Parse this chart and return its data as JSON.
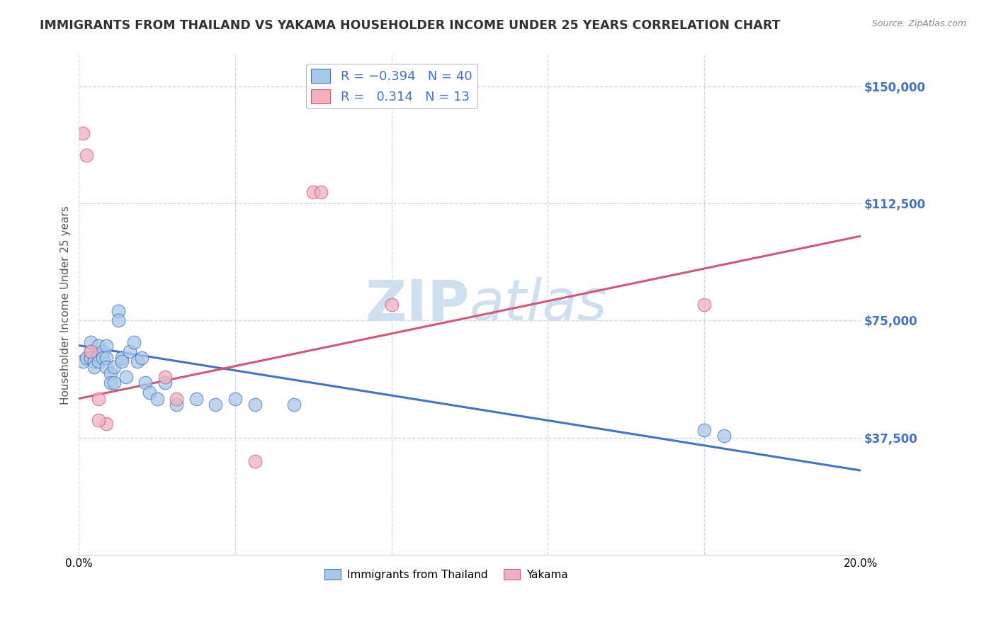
{
  "title": "IMMIGRANTS FROM THAILAND VS YAKAMA HOUSEHOLDER INCOME UNDER 25 YEARS CORRELATION CHART",
  "source": "Source: ZipAtlas.com",
  "ylabel": "Householder Income Under 25 years",
  "xlim": [
    0.0,
    0.2
  ],
  "ylim": [
    0,
    160000
  ],
  "yticks": [
    0,
    37500,
    75000,
    112500,
    150000
  ],
  "xticks": [
    0.0,
    0.04,
    0.08,
    0.12,
    0.16,
    0.2
  ],
  "xtick_labels": [
    "0.0%",
    "",
    "",
    "",
    "",
    "20.0%"
  ],
  "color_blue": "#a8c8e8",
  "color_pink": "#f0b0c0",
  "line_blue": "#4472c4",
  "line_pink": "#d05878",
  "watermark_color": "#d0dff0",
  "title_color": "#333333",
  "axis_label_color": "#4472c4",
  "blue_scatter_x": [
    0.001,
    0.002,
    0.003,
    0.003,
    0.003,
    0.004,
    0.004,
    0.005,
    0.005,
    0.005,
    0.006,
    0.006,
    0.007,
    0.007,
    0.007,
    0.008,
    0.008,
    0.009,
    0.009,
    0.01,
    0.01,
    0.011,
    0.011,
    0.012,
    0.013,
    0.014,
    0.015,
    0.016,
    0.017,
    0.018,
    0.02,
    0.022,
    0.025,
    0.03,
    0.035,
    0.04,
    0.045,
    0.055,
    0.16,
    0.165
  ],
  "blue_scatter_y": [
    62000,
    63000,
    65000,
    68000,
    63000,
    62000,
    60000,
    64000,
    62000,
    67000,
    65000,
    63000,
    67000,
    63000,
    60000,
    58000,
    55000,
    60000,
    55000,
    78000,
    75000,
    63000,
    62000,
    57000,
    65000,
    68000,
    62000,
    63000,
    55000,
    52000,
    50000,
    55000,
    48000,
    50000,
    48000,
    50000,
    48000,
    48000,
    40000,
    38000
  ],
  "pink_scatter_x": [
    0.001,
    0.002,
    0.003,
    0.005,
    0.007,
    0.022,
    0.06,
    0.062,
    0.08,
    0.16,
    0.005,
    0.025,
    0.045
  ],
  "pink_scatter_y": [
    135000,
    128000,
    65000,
    50000,
    42000,
    57000,
    116000,
    116000,
    80000,
    80000,
    43000,
    50000,
    30000
  ],
  "blue_line_x": [
    0.0,
    0.2
  ],
  "blue_line_y": [
    67000,
    27000
  ],
  "pink_line_x": [
    0.0,
    0.2
  ],
  "pink_line_y": [
    50000,
    102000
  ],
  "background_color": "#ffffff",
  "grid_color": "#c8d4e8",
  "legend_fontsize": 13,
  "title_fontsize": 12.5,
  "scatter_size": 180
}
